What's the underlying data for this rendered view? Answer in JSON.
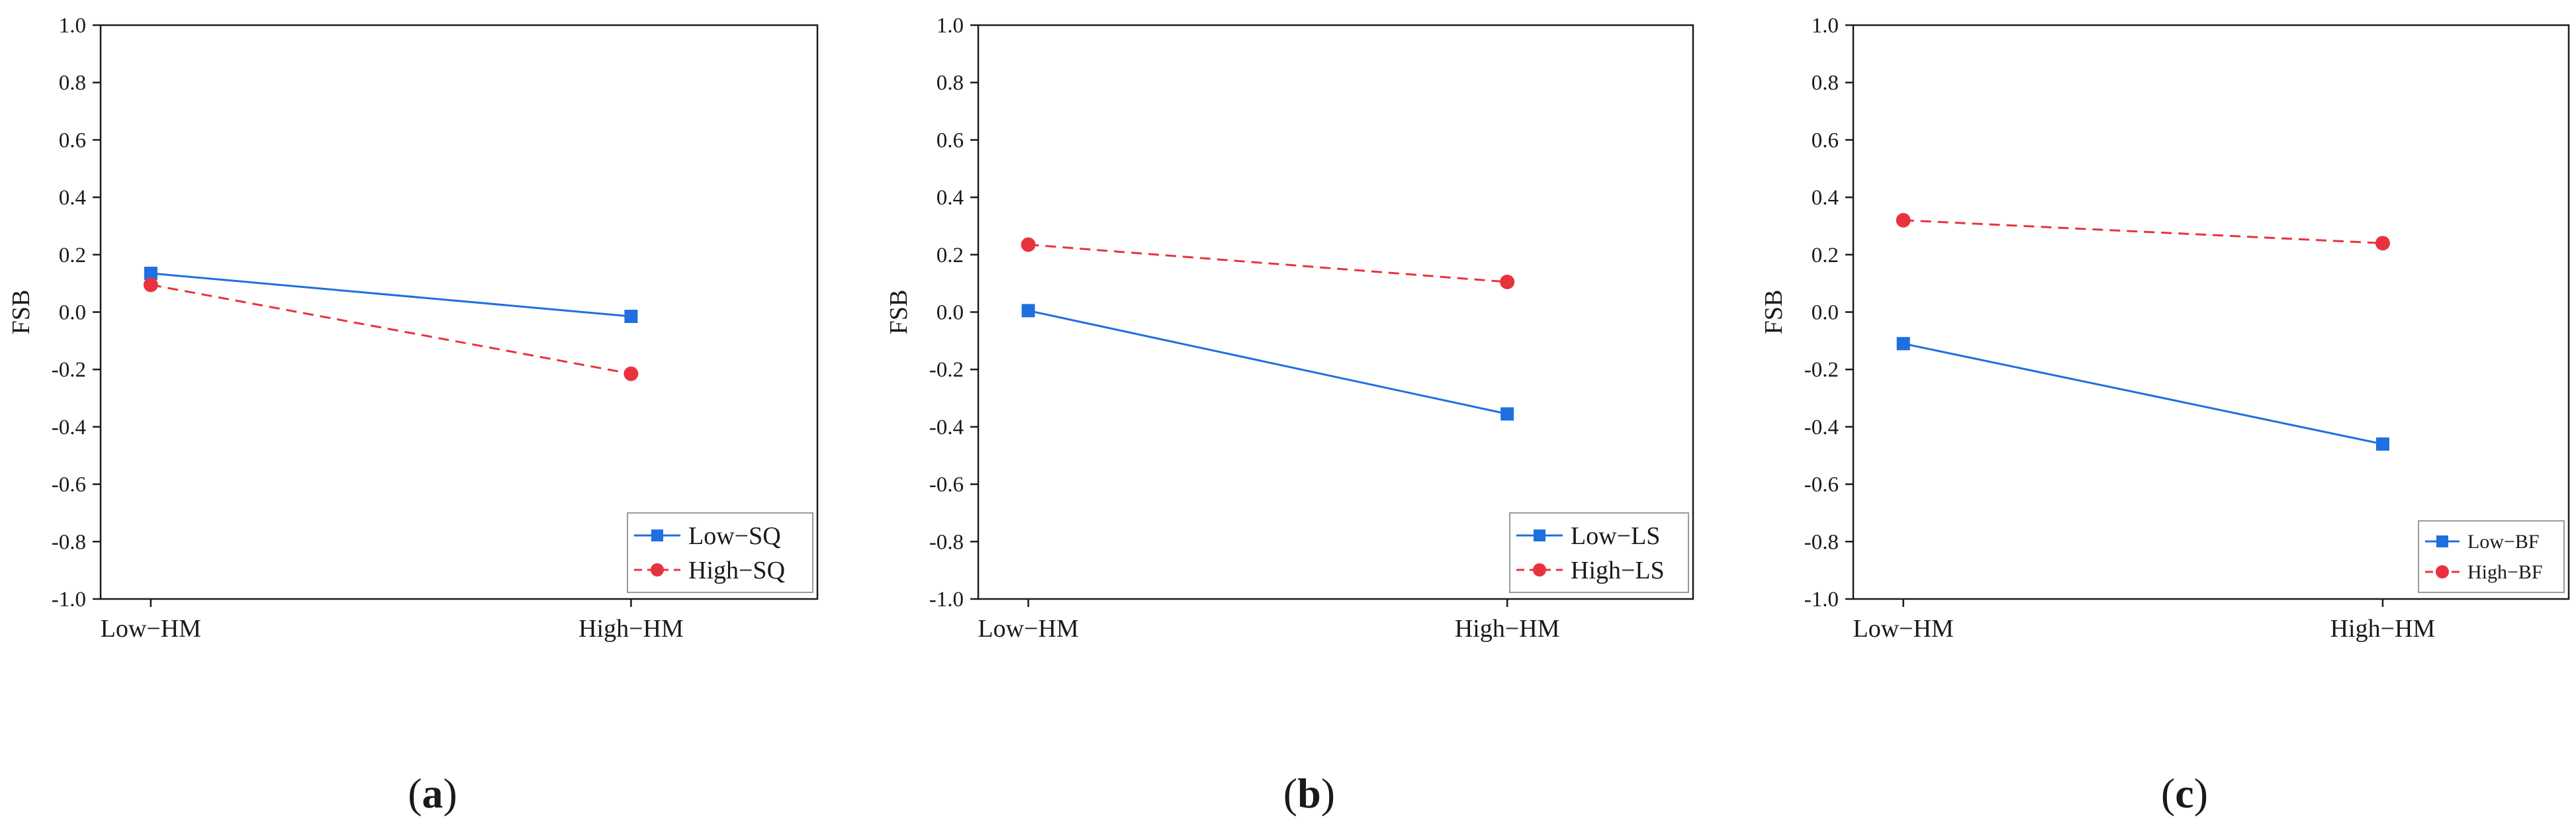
{
  "colors": {
    "low": "#1f6fe0",
    "high": "#e8333f",
    "axis": "#1a1a1a"
  },
  "chart_data": [
    {
      "type": "line",
      "panel_label": "a",
      "ylabel": "FSB",
      "xlabel": "",
      "ylim": [
        -1.0,
        1.0
      ],
      "yticks": [
        "1.0",
        "0.8",
        "0.6",
        "0.4",
        "0.2",
        "0.0",
        "-0.2",
        "-0.4",
        "-0.6",
        "-0.8",
        "-1.0"
      ],
      "categories": [
        "Low−HM",
        "High−HM"
      ],
      "legend_position": "bottom-right",
      "series": [
        {
          "name": "Low−SQ",
          "style": "solid",
          "marker": "square",
          "values": [
            0.135,
            -0.015
          ]
        },
        {
          "name": "High−SQ",
          "style": "dashed",
          "marker": "circle",
          "values": [
            0.095,
            -0.215
          ]
        }
      ]
    },
    {
      "type": "line",
      "panel_label": "b",
      "ylabel": "FSB",
      "xlabel": "",
      "ylim": [
        -1.0,
        1.0
      ],
      "yticks": [
        "1.0",
        "0.8",
        "0.6",
        "0.4",
        "0.2",
        "0.0",
        "-0.2",
        "-0.4",
        "-0.6",
        "-0.8",
        "-1.0"
      ],
      "categories": [
        "Low−HM",
        "High−HM"
      ],
      "legend_position": "bottom-right",
      "series": [
        {
          "name": "Low−LS",
          "style": "solid",
          "marker": "square",
          "values": [
            0.005,
            -0.355
          ]
        },
        {
          "name": "High−LS",
          "style": "dashed",
          "marker": "circle",
          "values": [
            0.235,
            0.105
          ]
        }
      ]
    },
    {
      "type": "line",
      "panel_label": "c",
      "ylabel": "FSB",
      "xlabel": "",
      "ylim": [
        -1.0,
        1.0
      ],
      "yticks": [
        "1.0",
        "0.8",
        "0.6",
        "0.4",
        "0.2",
        "0.0",
        "-0.2",
        "-0.4",
        "-0.6",
        "-0.8",
        "-1.0"
      ],
      "categories": [
        "Low−HM",
        "High−HM"
      ],
      "legend_position": "bottom-right",
      "series": [
        {
          "name": "Low−BF",
          "style": "solid",
          "marker": "square",
          "values": [
            -0.11,
            -0.46
          ]
        },
        {
          "name": "High−BF",
          "style": "dashed",
          "marker": "circle",
          "values": [
            0.32,
            0.24
          ]
        }
      ]
    }
  ]
}
